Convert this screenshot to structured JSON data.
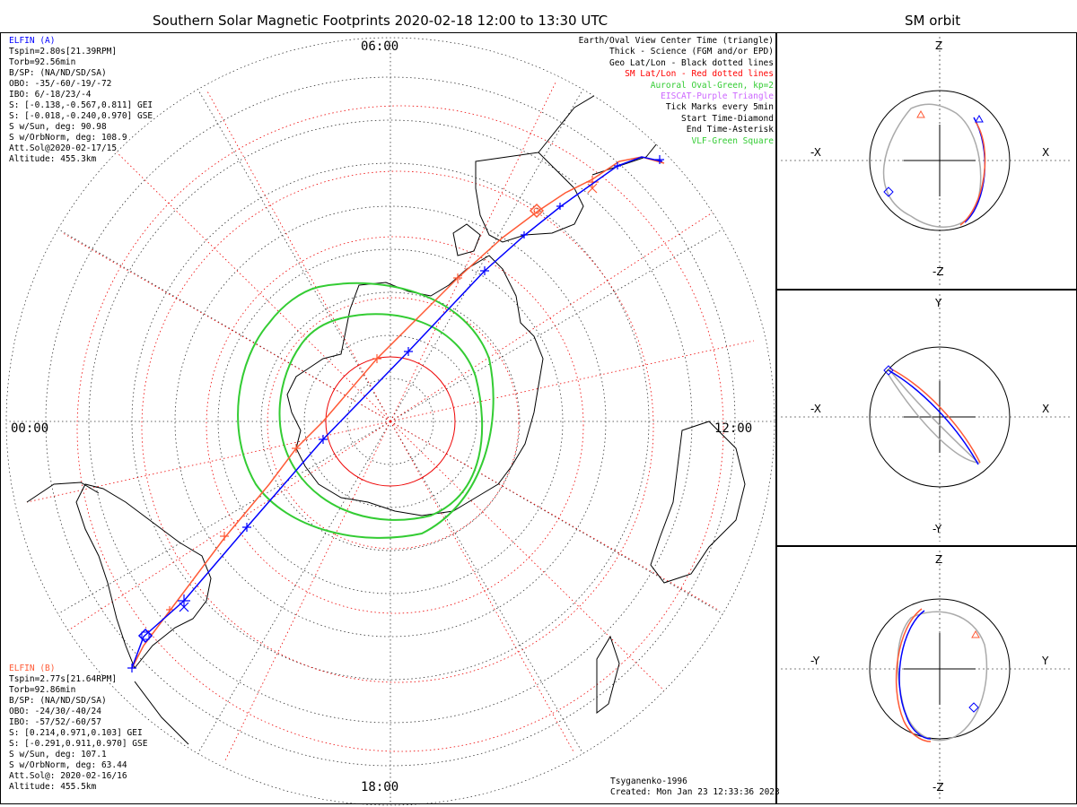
{
  "title": "Southern Solar Magnetic Footprints 2020-02-18 12:00 to 13:30 UTC",
  "sm_title": "SM orbit",
  "mlt_labels": {
    "top": "06:00",
    "bottom": "18:00",
    "left": "00:00",
    "right": "12:00"
  },
  "elfin_a": {
    "name": "ELFIN (A)",
    "color": "#0000ff",
    "lines": [
      "Tspin=2.80s[21.39RPM]",
      "Torb=92.56min",
      "B/SP: (NA/ND/SD/SA)",
      "OBO: -35/-60/-19/-72",
      "IBO: 6/-18/23/-4",
      "S: [-0.138,-0.567,0.811] GEI",
      "S: [-0.018,-0.240,0.970] GSE",
      "S w/Sun, deg: 90.98",
      "S w/OrbNorm, deg: 108.9",
      "Att.Sol@2020-02-17/15",
      "Altitude: 455.3km"
    ]
  },
  "elfin_b": {
    "name": "ELFIN (B)",
    "color": "#ff5a36",
    "lines": [
      "Tspin=2.77s[21.64RPM]",
      "Torb=92.86min",
      "B/SP: (NA/ND/SD/SA)",
      "OBO: -24/30/-40/24",
      "IBO: -57/52/-60/57",
      "S: [0.214,0.971,0.103] GEI",
      "S: [-0.291,0.911,0.970] GSE",
      "S w/Sun, deg: 107.1",
      "S w/OrbNorm, deg: 63.44",
      "Att.Sol@: 2020-02-16/16",
      "Altitude: 455.5km"
    ]
  },
  "legend": [
    {
      "text": "Earth/Oval View Center Time (triangle)",
      "color": "#000000"
    },
    {
      "text": "Thick - Science (FGM and/or EPD)",
      "color": "#000000"
    },
    {
      "text": "Geo Lat/Lon - Black dotted lines",
      "color": "#000000"
    },
    {
      "text": "SM Lat/Lon - Red dotted lines",
      "color": "#ff0000"
    },
    {
      "text": "Auroral Oval-Green, kp=2",
      "color": "#33cc33"
    },
    {
      "text": "EISCAT-Purple Triangle",
      "color": "#cc66ff"
    },
    {
      "text": "Tick Marks every 5min",
      "color": "#000000"
    },
    {
      "text": "Start Time-Diamond",
      "color": "#000000"
    },
    {
      "text": "End Time-Asterisk",
      "color": "#000000"
    },
    {
      "text": "VLF-Green Square",
      "color": "#33cc33"
    }
  ],
  "credits": {
    "model": "Tsyganenko-1996",
    "created": "Created: Mon Jan 23 12:33:36 2023"
  },
  "panels": [
    {
      "id": "xz",
      "top_label": "Z",
      "bottom_label": "-Z",
      "left_label": "-X",
      "right_label": "X"
    },
    {
      "id": "xy",
      "top_label": "Y",
      "bottom_label": "-Y",
      "left_label": "-X",
      "right_label": "X"
    },
    {
      "id": "yz",
      "top_label": "Z",
      "bottom_label": "-Z",
      "left_label": "-Y",
      "right_label": "Y"
    }
  ]
}
